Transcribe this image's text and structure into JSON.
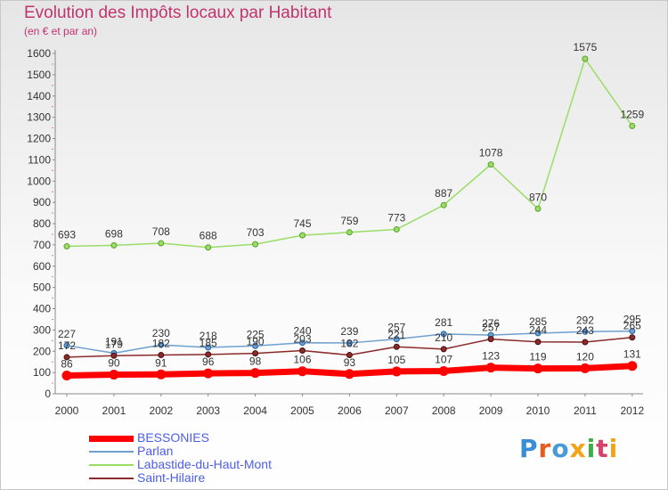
{
  "title": "Evolution des Impôts locaux par Habitant",
  "subtitle": "(en € et par an)",
  "brand": {
    "text": "Proxiti",
    "colors": [
      "#3b8ed6",
      "#e85b1f",
      "#4a9ad8",
      "#f2a317",
      "#3fae49",
      "#d9406b",
      "#f2a317"
    ]
  },
  "chart_data": {
    "type": "line",
    "categories": [
      "2000",
      "2001",
      "2002",
      "2003",
      "2004",
      "2005",
      "2006",
      "2007",
      "2008",
      "2009",
      "2010",
      "2011",
      "2012"
    ],
    "ylim": [
      0,
      1600
    ],
    "yticks": [
      0,
      100,
      200,
      300,
      400,
      500,
      600,
      700,
      800,
      900,
      1000,
      1100,
      1200,
      1300,
      1400,
      1500,
      1600
    ],
    "grid": false,
    "legend_position": "bottom-left",
    "series": [
      {
        "name": "BESSONIES",
        "color": "#ff0000",
        "values": [
          86,
          90,
          91,
          96,
          98,
          106,
          93,
          105,
          107,
          123,
          119,
          120,
          131
        ]
      },
      {
        "name": "Parlan",
        "color": "#6fa0cf",
        "values": [
          227,
          191,
          230,
          218,
          225,
          240,
          239,
          257,
          281,
          276,
          285,
          292,
          295
        ]
      },
      {
        "name": "Labastide-du-Haut-Mont",
        "color": "#99dd66",
        "values": [
          693,
          698,
          708,
          688,
          703,
          745,
          759,
          773,
          887,
          1078,
          870,
          1575,
          1259
        ]
      },
      {
        "name": "Saint-Hilaire",
        "color": "#8b2a2a",
        "values": [
          172,
          179,
          182,
          185,
          190,
          203,
          182,
          221,
          210,
          257,
          244,
          243,
          265
        ]
      }
    ]
  }
}
